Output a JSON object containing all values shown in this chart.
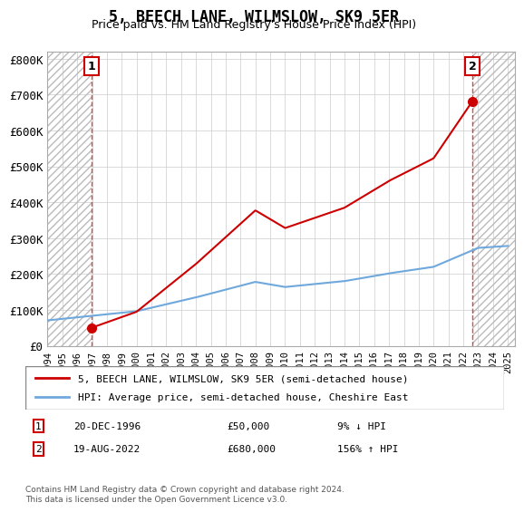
{
  "title": "5, BEECH LANE, WILMSLOW, SK9 5ER",
  "subtitle": "Price paid vs. HM Land Registry's House Price Index (HPI)",
  "legend_line1": "5, BEECH LANE, WILMSLOW, SK9 5ER (semi-detached house)",
  "legend_line2": "HPI: Average price, semi-detached house, Cheshire East",
  "annotation1_label": "1",
  "annotation1_date": "20-DEC-1996",
  "annotation1_price": "£50,000",
  "annotation1_hpi": "9% ↓ HPI",
  "annotation2_label": "2",
  "annotation2_date": "19-AUG-2022",
  "annotation2_price": "£680,000",
  "annotation2_hpi": "156% ↑ HPI",
  "footer": "Contains HM Land Registry data © Crown copyright and database right 2024.\nThis data is licensed under the Open Government Licence v3.0.",
  "purchase1_year": 1996.96,
  "purchase1_price": 50000,
  "purchase2_year": 2022.63,
  "purchase2_price": 680000,
  "hpi_color": "#6fa8dc",
  "price_color": "#cc0000",
  "background_hatch": "#e8e8e8",
  "ylim": [
    0,
    820000
  ],
  "xlim_start": 1994,
  "xlim_end": 2025.5,
  "xlabel_years": [
    1994,
    1995,
    1996,
    1997,
    1998,
    1999,
    2000,
    2001,
    2002,
    2003,
    2004,
    2005,
    2006,
    2007,
    2008,
    2009,
    2010,
    2011,
    2012,
    2013,
    2014,
    2015,
    2016,
    2017,
    2018,
    2019,
    2020,
    2021,
    2022,
    2023,
    2024,
    2025
  ],
  "yticks": [
    0,
    100000,
    200000,
    300000,
    400000,
    500000,
    600000,
    700000,
    800000
  ],
  "ytick_labels": [
    "£0",
    "£100K",
    "£200K",
    "£300K",
    "£400K",
    "£500K",
    "£600K",
    "£700K",
    "£800K"
  ]
}
